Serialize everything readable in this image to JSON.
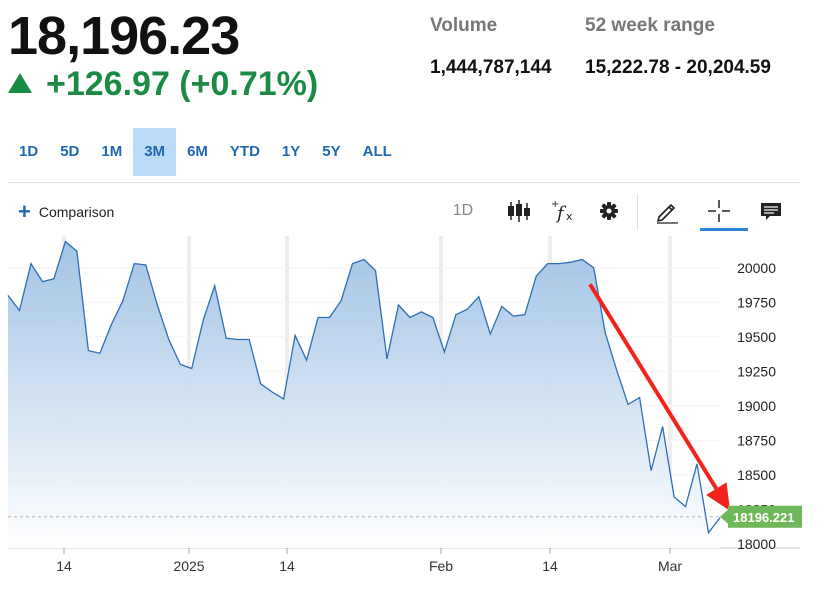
{
  "quote": {
    "price": "18,196.23",
    "change": "+126.97 (+0.71%)",
    "change_color": "#1a8a45"
  },
  "stats": {
    "volume_label": "Volume",
    "volume_value": "1,444,787,144",
    "range_label": "52 week range",
    "range_value": "15,222.78 - 20,204.59"
  },
  "ranges": [
    "1D",
    "5D",
    "1M",
    "3M",
    "6M",
    "YTD",
    "1Y",
    "5Y",
    "ALL"
  ],
  "active_range": "3M",
  "toolbar": {
    "comparison_label": "Comparison",
    "interval_label": "1D",
    "icons": [
      "candlestick-icon",
      "function-icon",
      "gear-icon",
      "pencil-icon",
      "crosshair-icon",
      "comment-icon"
    ]
  },
  "chart_data": {
    "type": "area",
    "x_tick_labels": [
      "14",
      "2025",
      "14",
      "Feb",
      "14",
      "Mar"
    ],
    "y_ticks": [
      18000,
      18250,
      18500,
      18750,
      19000,
      19250,
      19500,
      19750,
      20000
    ],
    "ylim": [
      17970,
      20230
    ],
    "last_value_label": "18196.221",
    "last_value": 18196.221,
    "series": [
      {
        "values": [
          19800,
          19690,
          20030,
          19900,
          19920,
          20190,
          20120,
          19400,
          19380,
          19590,
          19760,
          20030,
          20020,
          19730,
          19480,
          19300,
          19270,
          19620,
          19870,
          19490,
          19480,
          19480,
          19160,
          19100,
          19050,
          19510,
          19330,
          19640,
          19640,
          19760,
          20030,
          20060,
          19980,
          19340,
          19730,
          19640,
          19680,
          19640,
          19390,
          19660,
          19700,
          19790,
          19520,
          19720,
          19650,
          19660,
          19940,
          20030,
          20030,
          20040,
          20060,
          20000,
          19530,
          19260,
          19010,
          19060,
          18530,
          18850,
          18340,
          18270,
          18580,
          18080,
          18190
        ]
      }
    ],
    "colors": {
      "line": "#2e6fb3",
      "fill_top": "#9ec1e4",
      "fill_bottom": "#ffffff",
      "last_label_bg": "#6fb85a"
    },
    "annotation": "red arrow pointing down to the latest price"
  }
}
